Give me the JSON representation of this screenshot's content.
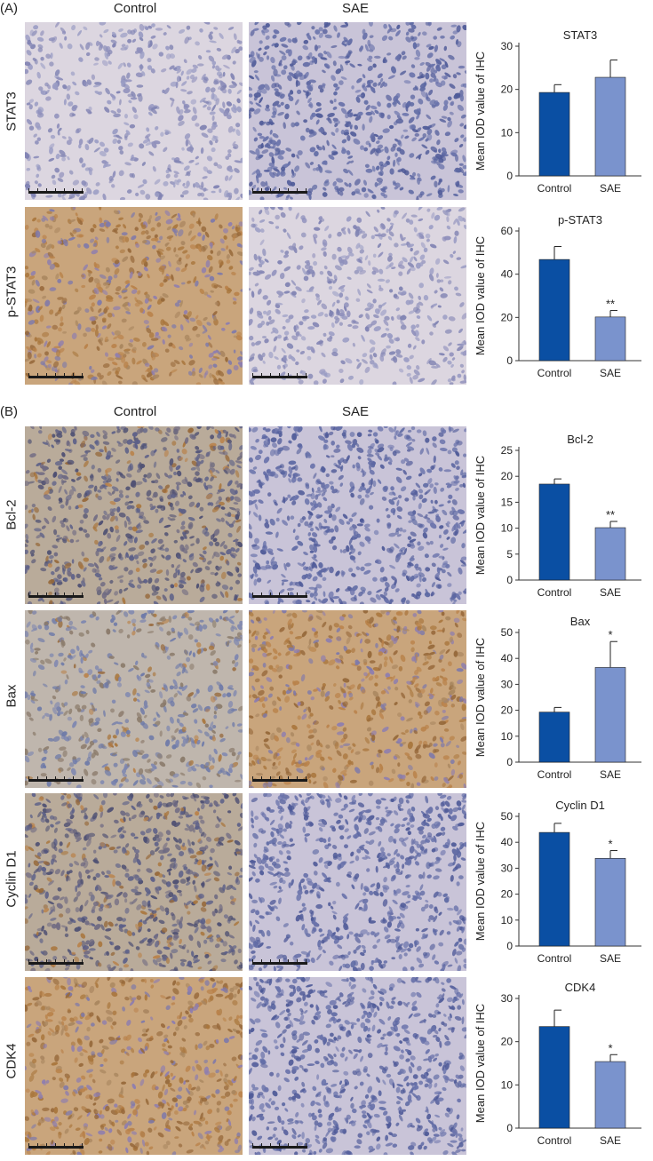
{
  "figure": {
    "panels": [
      {
        "id": "A",
        "label": "(A)",
        "columns": [
          "Control",
          "SAE"
        ],
        "rows": [
          "STAT3",
          "p-STAT3"
        ]
      },
      {
        "id": "B",
        "label": "(B)",
        "columns": [
          "Control",
          "SAE"
        ],
        "rows": [
          "Bcl-2",
          "Bax",
          "Cyclin D1",
          "CDK4"
        ]
      }
    ],
    "colors": {
      "control_bar": "#0a4fa3",
      "sae_bar": "#7a93cd",
      "hematoxylin": "#6f7ab0",
      "dab": "#b88a55",
      "background_tissue": "#e4e0e4"
    },
    "images": [
      {
        "row": "STAT3",
        "control_stain": "hematoxylin-light",
        "sae_stain": "hematoxylin-dense"
      },
      {
        "row": "p-STAT3",
        "control_stain": "dab-strong",
        "sae_stain": "hematoxylin-light"
      },
      {
        "row": "Bcl-2",
        "control_stain": "dab-moderate",
        "sae_stain": "hematoxylin-dense"
      },
      {
        "row": "Bax",
        "control_stain": "dab-weak",
        "sae_stain": "dab-strong"
      },
      {
        "row": "Cyclin D1",
        "control_stain": "dab-moderate",
        "sae_stain": "hematoxylin-dense"
      },
      {
        "row": "CDK4",
        "control_stain": "dab-strong",
        "sae_stain": "hematoxylin-dense"
      }
    ]
  },
  "chart_data": [
    {
      "type": "bar",
      "title": "STAT3",
      "ylabel": "Mean IOD value of IHC",
      "categories": [
        "Control",
        "SAE"
      ],
      "values": [
        19.3,
        22.8
      ],
      "errors": [
        1.8,
        4.0
      ],
      "significance": [
        "",
        ""
      ],
      "ylim": [
        0,
        30
      ],
      "yticks": [
        0,
        10,
        20,
        30
      ]
    },
    {
      "type": "bar",
      "title": "p-STAT3",
      "ylabel": "Mean IOD value of IHC",
      "categories": [
        "Control",
        "SAE"
      ],
      "values": [
        46.8,
        20.2
      ],
      "errors": [
        6.0,
        3.0
      ],
      "significance": [
        "",
        "**"
      ],
      "ylim": [
        0,
        60
      ],
      "yticks": [
        0,
        20,
        40,
        60
      ]
    },
    {
      "type": "bar",
      "title": "Bcl-2",
      "ylabel": "Mean IOD value of IHC",
      "categories": [
        "Control",
        "SAE"
      ],
      "values": [
        18.5,
        10.1
      ],
      "errors": [
        1.0,
        1.2
      ],
      "significance": [
        "",
        "**"
      ],
      "ylim": [
        0,
        25
      ],
      "yticks": [
        0,
        5,
        10,
        15,
        20,
        25
      ]
    },
    {
      "type": "bar",
      "title": "Bax",
      "ylabel": "Mean IOD value of IHC",
      "categories": [
        "Control",
        "SAE"
      ],
      "values": [
        19.3,
        36.5
      ],
      "errors": [
        1.8,
        10.0
      ],
      "significance": [
        "",
        "*"
      ],
      "ylim": [
        0,
        50
      ],
      "yticks": [
        0,
        10,
        20,
        30,
        40,
        50
      ]
    },
    {
      "type": "bar",
      "title": "Cyclin D1",
      "ylabel": "Mean IOD value of IHC",
      "categories": [
        "Control",
        "SAE"
      ],
      "values": [
        43.8,
        33.8
      ],
      "errors": [
        3.5,
        3.0
      ],
      "significance": [
        "",
        "*"
      ],
      "ylim": [
        0,
        50
      ],
      "yticks": [
        0,
        10,
        20,
        30,
        40,
        50
      ]
    },
    {
      "type": "bar",
      "title": "CDK4",
      "ylabel": "Mean IOD value of IHC",
      "categories": [
        "Control",
        "SAE"
      ],
      "values": [
        23.5,
        15.4
      ],
      "errors": [
        3.8,
        1.6
      ],
      "significance": [
        "",
        "*"
      ],
      "ylim": [
        0,
        30
      ],
      "yticks": [
        0,
        10,
        20,
        30
      ]
    }
  ]
}
